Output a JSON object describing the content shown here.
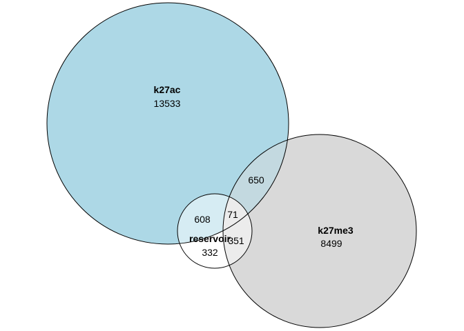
{
  "sets": [
    {
      "key": "k27ac",
      "name": "k27ac",
      "only": "13533",
      "color": "#add8e6"
    },
    {
      "key": "k27me3",
      "name": "k27me3",
      "only": "8499",
      "color": "#d9d9d9"
    },
    {
      "key": "reservoir",
      "name": "reservoir",
      "only": "332",
      "color": "#ffffff"
    }
  ],
  "overlaps": {
    "k27ac_k27me3": "650",
    "k27ac_reservoir": "608",
    "all_three": "71",
    "k27me3_reservoir": "351"
  },
  "colors": {
    "outline": "#000000",
    "k27ac_reservoir_fill": "#d6ecf3",
    "k27me3_reservoir_fill": "#ececec",
    "k27ac_k27me3_fill": "#c3d9e0"
  }
}
